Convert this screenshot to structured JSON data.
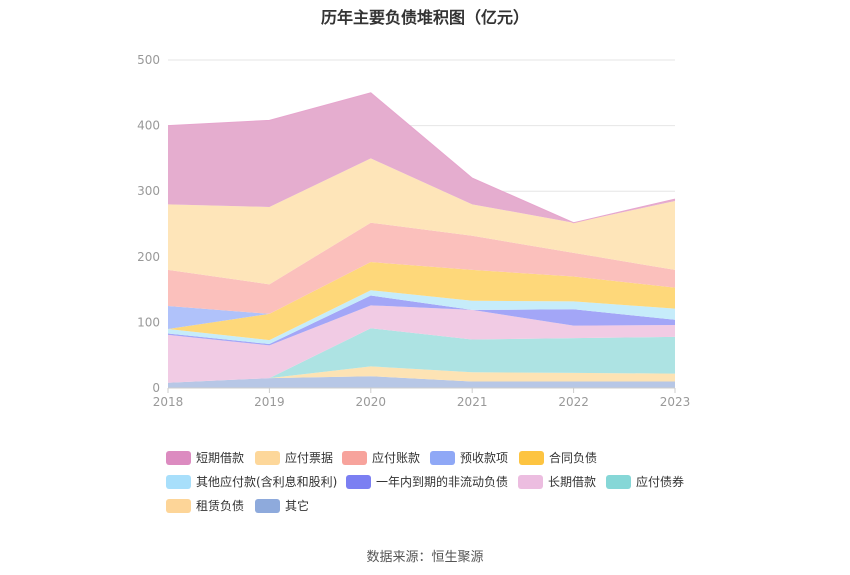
{
  "page_title": "历年主要负债堆积图（亿元）",
  "source_text": "数据来源：恒生聚源",
  "chart_data": {
    "type": "area",
    "stacked": true,
    "title": "历年主要负债堆积图（亿元）",
    "categories": [
      "2018",
      "2019",
      "2020",
      "2021",
      "2022",
      "2023"
    ],
    "ylim": [
      0,
      500
    ],
    "yticks": [
      "0",
      "100",
      "200",
      "300",
      "400",
      "500"
    ],
    "grid": true,
    "legend_position": "bottom",
    "series": [
      {
        "name": "其它",
        "color": "#b7c7e6",
        "values": [
          8,
          15,
          18,
          10,
          10,
          10
        ]
      },
      {
        "name": "租赁负债",
        "color": "#fde3b4",
        "values": [
          0,
          0,
          15,
          14,
          13,
          12
        ]
      },
      {
        "name": "应付债券",
        "color": "#ade3e3",
        "values": [
          0,
          0,
          58,
          50,
          53,
          56
        ]
      },
      {
        "name": "长期借款",
        "color": "#f1cbe4",
        "values": [
          73,
          50,
          35,
          45,
          19,
          18
        ]
      },
      {
        "name": "一年内到期的非流动负债",
        "color": "#a3a6f7",
        "values": [
          2,
          2,
          15,
          0,
          25,
          8
        ]
      },
      {
        "name": "其他应付款(含利息和股利)",
        "color": "#c6ecfa",
        "values": [
          7,
          6,
          8,
          14,
          12,
          17
        ]
      },
      {
        "name": "合同负债",
        "color": "#fed87a",
        "values": [
          0,
          40,
          43,
          47,
          38,
          32
        ]
      },
      {
        "name": "预收款项",
        "color": "#b0c2fa",
        "values": [
          35,
          0,
          0,
          0,
          0,
          0
        ]
      },
      {
        "name": "应付账款",
        "color": "#fbc0bc",
        "values": [
          55,
          45,
          60,
          52,
          36,
          27
        ]
      },
      {
        "name": "应付票据",
        "color": "#fee5b9",
        "values": [
          100,
          118,
          98,
          48,
          46,
          105
        ]
      },
      {
        "name": "短期借款",
        "color": "#e5adcf",
        "values": [
          120,
          132,
          100,
          40,
          0,
          3
        ]
      }
    ],
    "legend_order": [
      "短期借款",
      "应付票据",
      "应付账款",
      "预收款项",
      "合同负债",
      "其他应付款(含利息和股利)",
      "一年内到期的非流动负债",
      "长期借款",
      "应付债券",
      "租赁负债",
      "其它"
    ],
    "legend_colors": {
      "短期借款": "#dc8bc0",
      "应付票据": "#fdd79a",
      "应付账款": "#f7a39c",
      "预收款项": "#8fa8f6",
      "合同负债": "#fdc441",
      "其他应付款(含利息和股利)": "#a8dffb",
      "一年内到期的非流动负债": "#7b7ff2",
      "长期借款": "#ecbde0",
      "应付债券": "#86d7d7",
      "租赁负债": "#fdd598",
      "其它": "#8eaadc"
    }
  }
}
